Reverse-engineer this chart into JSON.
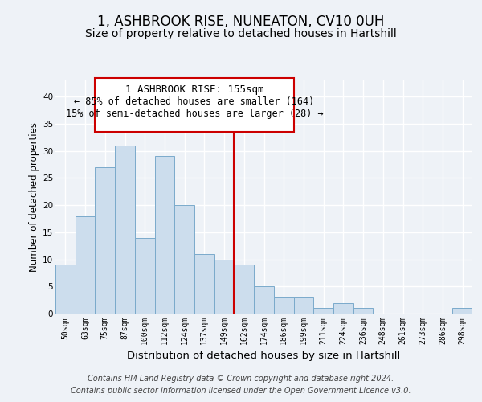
{
  "title": "1, ASHBROOK RISE, NUNEATON, CV10 0UH",
  "subtitle": "Size of property relative to detached houses in Hartshill",
  "xlabel": "Distribution of detached houses by size in Hartshill",
  "ylabel": "Number of detached properties",
  "bar_labels": [
    "50sqm",
    "63sqm",
    "75sqm",
    "87sqm",
    "100sqm",
    "112sqm",
    "124sqm",
    "137sqm",
    "149sqm",
    "162sqm",
    "174sqm",
    "186sqm",
    "199sqm",
    "211sqm",
    "224sqm",
    "236sqm",
    "248sqm",
    "261sqm",
    "273sqm",
    "286sqm",
    "298sqm"
  ],
  "bar_values": [
    9,
    18,
    27,
    31,
    14,
    29,
    20,
    11,
    10,
    9,
    5,
    3,
    3,
    1,
    2,
    1,
    0,
    0,
    0,
    0,
    1
  ],
  "bar_color": "#ccdded",
  "bar_edge_color": "#7aaacb",
  "vline_x": 9.0,
  "vline_color": "#cc0000",
  "ylim": [
    0,
    43
  ],
  "yticks": [
    0,
    5,
    10,
    15,
    20,
    25,
    30,
    35,
    40
  ],
  "annotation_title": "1 ASHBROOK RISE: 155sqm",
  "annotation_line1": "← 85% of detached houses are smaller (164)",
  "annotation_line2": "15% of semi-detached houses are larger (28) →",
  "box_facecolor": "#ffffff",
  "box_edgecolor": "#cc0000",
  "footer_line1": "Contains HM Land Registry data © Crown copyright and database right 2024.",
  "footer_line2": "Contains public sector information licensed under the Open Government Licence v3.0.",
  "bg_color": "#eef2f7",
  "grid_color": "#ffffff",
  "title_fontsize": 12,
  "subtitle_fontsize": 10,
  "tick_fontsize": 7,
  "xlabel_fontsize": 9.5,
  "ylabel_fontsize": 8.5,
  "footer_fontsize": 7,
  "annot_title_fontsize": 9,
  "annot_line_fontsize": 8.5
}
